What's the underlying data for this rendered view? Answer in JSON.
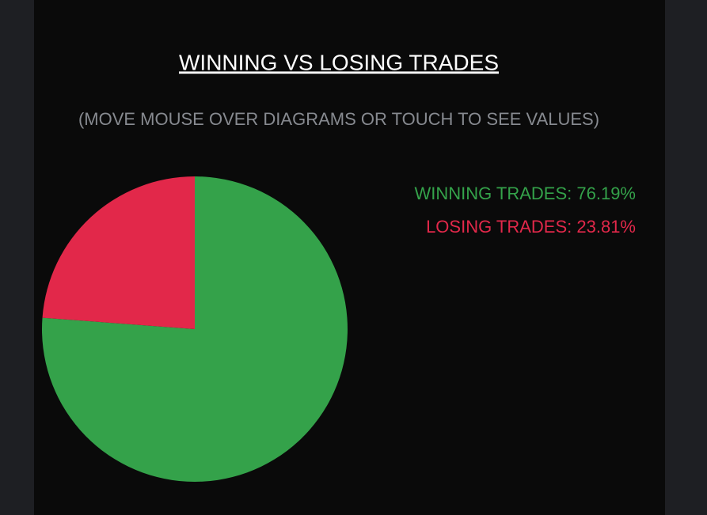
{
  "chart_data": {
    "type": "pie",
    "title": "WINNING VS LOSING TRADES",
    "subtitle": "(MOVE MOUSE OVER DIAGRAMS OR TOUCH TO SEE VALUES)",
    "categories": [
      "WINNING TRADES: 76.19%",
      "LOSING TRADES: 23.81%"
    ],
    "values": [
      76.19,
      23.81
    ],
    "colors": [
      "#34a24a",
      "#e2284a"
    ],
    "legend": "top-right"
  }
}
